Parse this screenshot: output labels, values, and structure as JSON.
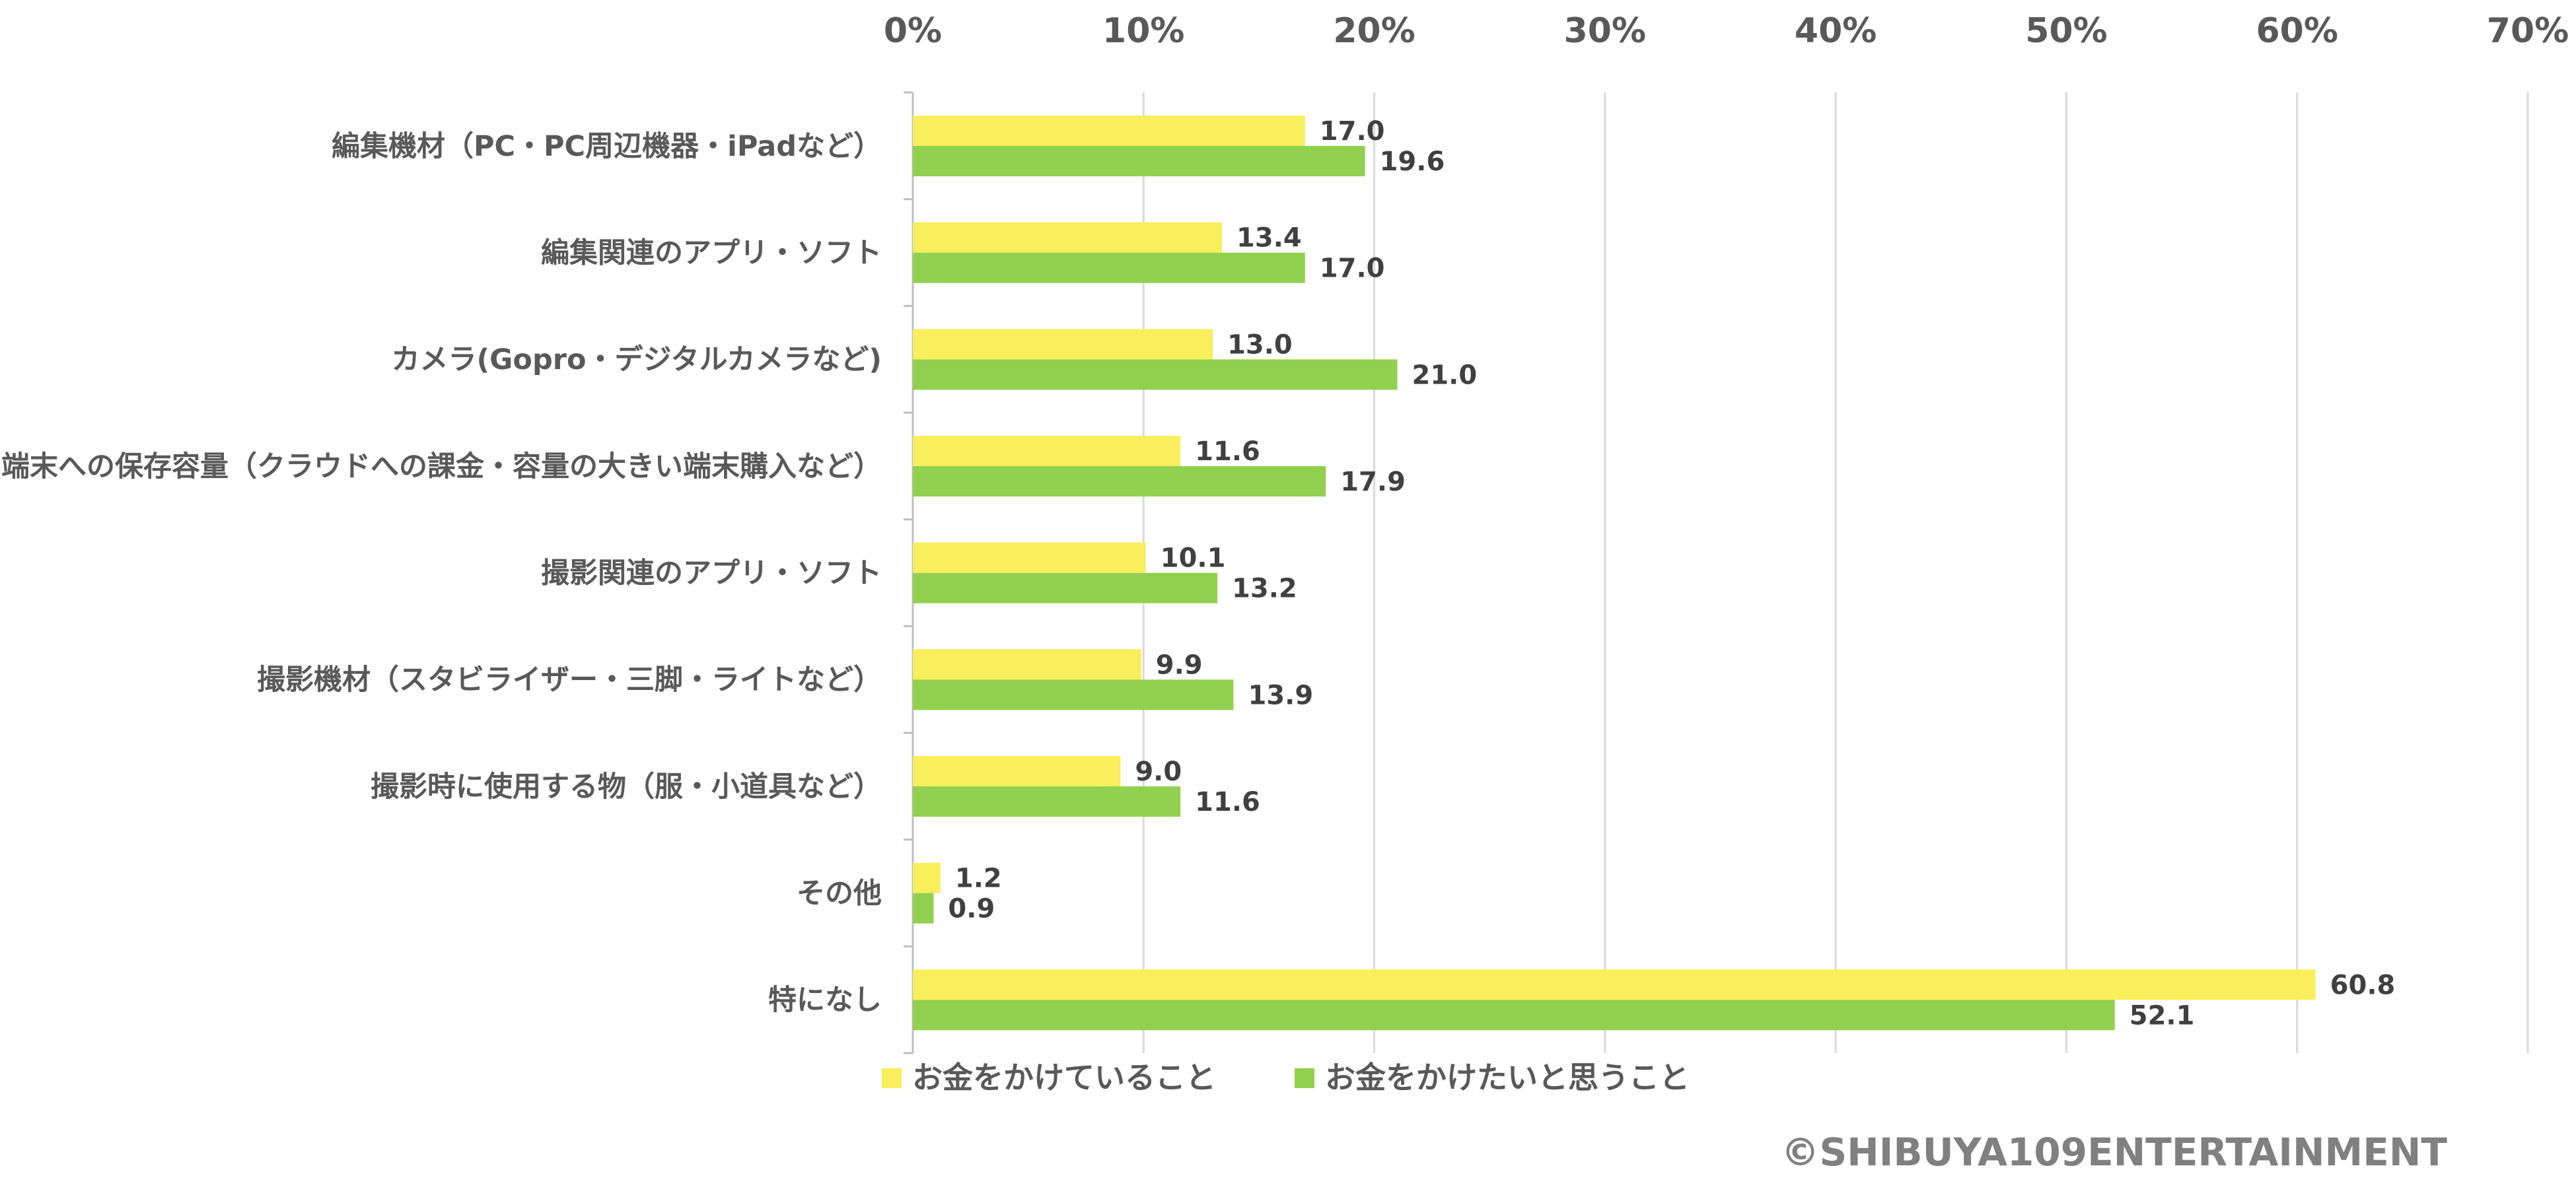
{
  "chart_data": {
    "type": "bar",
    "orientation": "horizontal",
    "categories": [
      "編集機材（PC・PC周辺機器・iPadなど）",
      "編集関連のアプリ・ソフト",
      "カメラ(Gopro・デジタルカメラなど)",
      "端末への保存容量（クラウドへの課金・容量の大きい端末購入など）",
      "撮影関連のアプリ・ソフト",
      "撮影機材（スタビライザー・三脚・ライトなど）",
      "撮影時に使用する物（服・小道具など）",
      "その他",
      "特になし"
    ],
    "series": [
      {
        "name": "お金をかけていること",
        "color": "#F9EE5B",
        "values": [
          17.0,
          13.4,
          13.0,
          11.6,
          10.1,
          9.9,
          9.0,
          1.2,
          60.8
        ]
      },
      {
        "name": "お金をかけたいと思うこと",
        "color": "#92D050",
        "values": [
          19.6,
          17.0,
          21.0,
          17.9,
          13.2,
          13.9,
          11.6,
          0.9,
          52.1
        ]
      }
    ],
    "value_labels": [
      [
        "17.0",
        "13.4",
        "13.0",
        "11.6",
        "10.1",
        "9.9",
        "9.0",
        "1.2",
        "60.8"
      ],
      [
        "19.6",
        "17.0",
        "21.0",
        "17.9",
        "13.2",
        "13.9",
        "11.6",
        "0.9",
        "52.1"
      ]
    ],
    "xlim": [
      0,
      70
    ],
    "xticks": [
      "0%",
      "10%",
      "20%",
      "30%",
      "40%",
      "50%",
      "60%",
      "70%"
    ],
    "xaxis_position": "top",
    "grid": true,
    "legend_position": "bottom-left",
    "title": "",
    "xlabel": "",
    "ylabel": ""
  },
  "copyright": "©SHIBUYA109ENTERTAINMENT"
}
